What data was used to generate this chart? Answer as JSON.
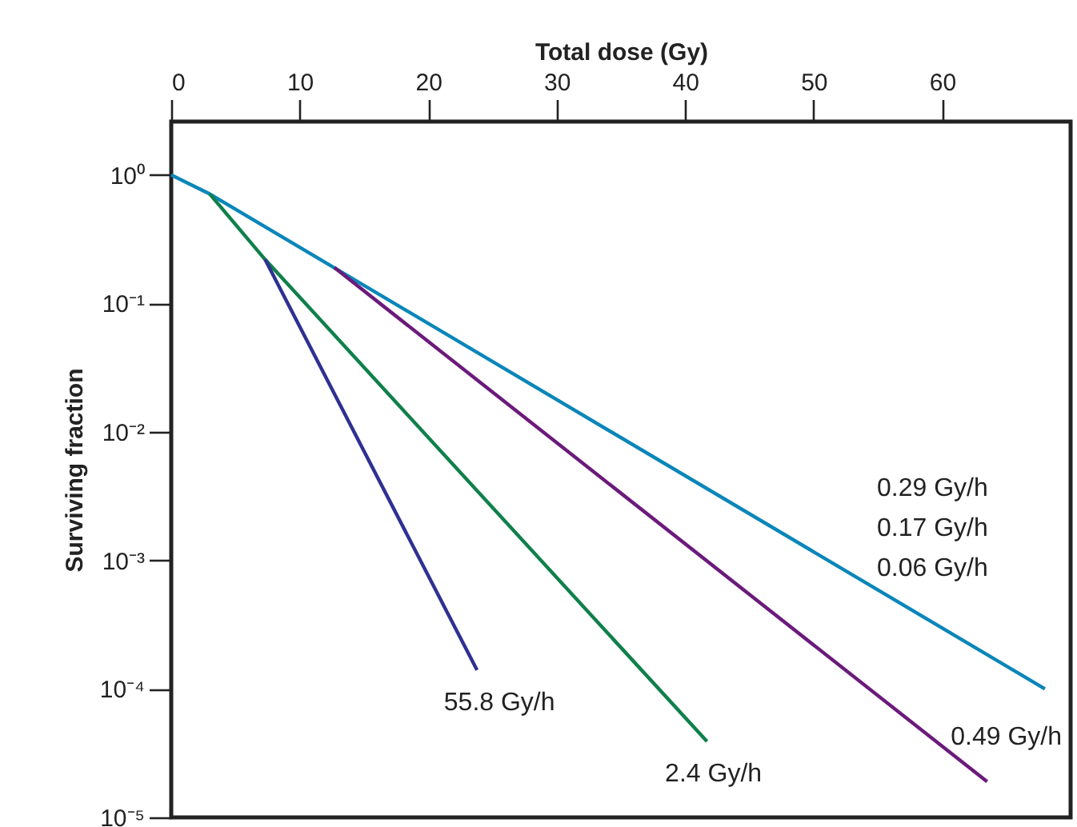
{
  "chart_data": {
    "type": "line",
    "xlabel": "Total dose (Gy)",
    "ylabel": "Surviving fraction",
    "log": "y",
    "grid": false,
    "xlim": [
      0,
      70
    ],
    "xticks": [
      0,
      10,
      20,
      30,
      40,
      50,
      60
    ],
    "ylim": [
      1e-05,
      2.6
    ],
    "yticks": [
      {
        "value": 1,
        "label": "10⁰"
      },
      {
        "value": 0.1,
        "label": "10⁻¹"
      },
      {
        "value": 0.01,
        "label": "10⁻²"
      },
      {
        "value": 0.001,
        "label": "10⁻³"
      },
      {
        "value": 0.0001,
        "label": "10⁻⁴"
      },
      {
        "value": 1e-05,
        "label": "10⁻⁵"
      }
    ],
    "series": [
      {
        "color": "#0a86b9",
        "x": [
          0,
          3,
          68
        ],
        "values": [
          1,
          0.71,
          0.0001
        ]
      },
      {
        "name": "2.4 Gy/h",
        "color": "#10804a",
        "x": [
          3,
          7.3,
          41.7
        ],
        "values": [
          0.71,
          0.22,
          3.9e-05
        ]
      },
      {
        "name": "55.8 Gy/h",
        "color": "#2e3192",
        "x": [
          7.3,
          23.8
        ],
        "values": [
          0.22,
          0.00014
        ]
      },
      {
        "name": "0.49 Gy/h",
        "color": "#6b1a7b",
        "x": [
          12.7,
          63.5
        ],
        "values": [
          0.19,
          1.9e-05
        ]
      }
    ],
    "annotations": [
      "0.29 Gy/h",
      "0.17 Gy/h",
      "0.06 Gy/h"
    ]
  }
}
